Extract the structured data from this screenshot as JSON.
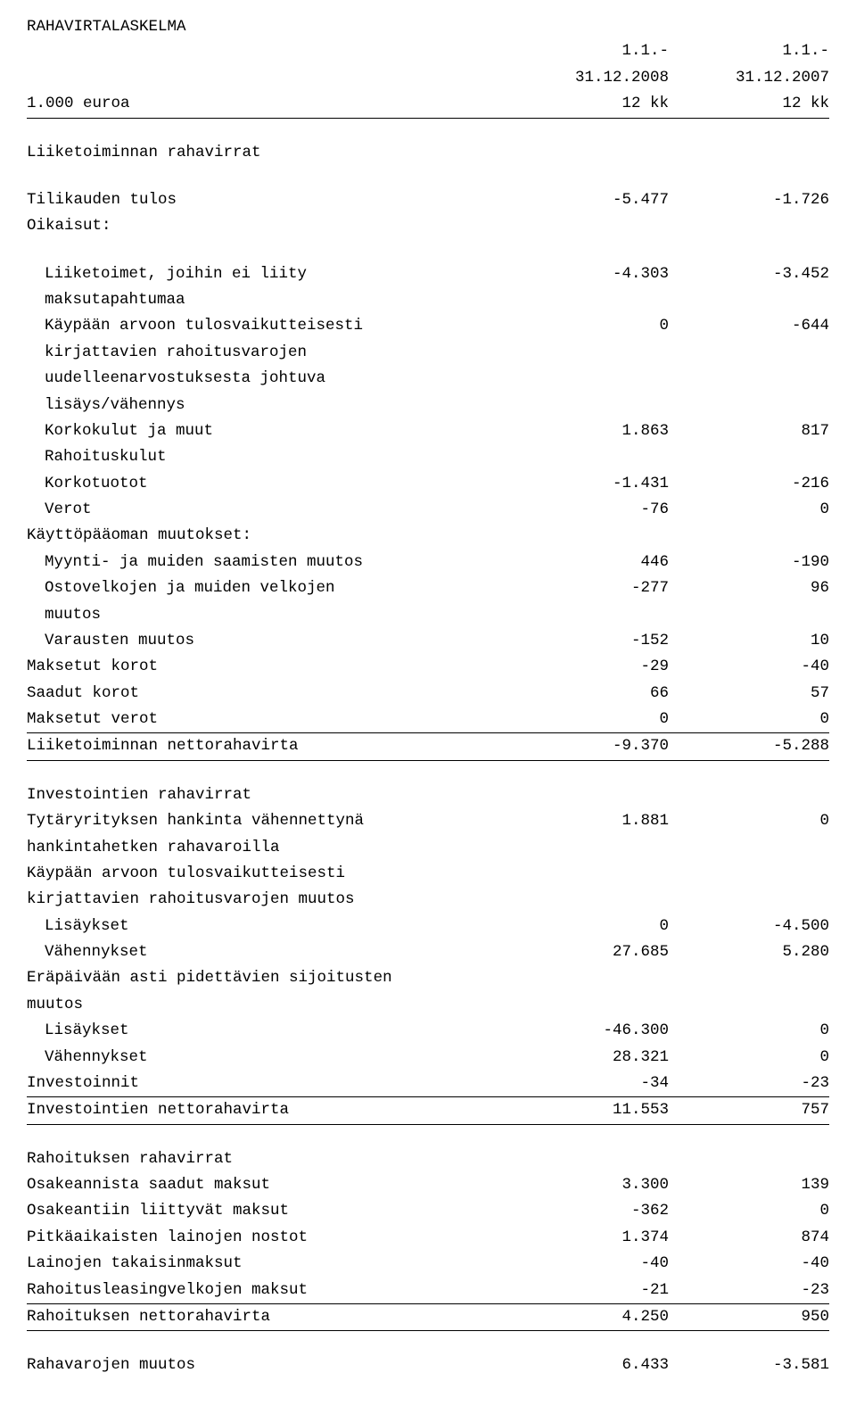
{
  "title": "RAHAVIRTALASKELMA",
  "header": {
    "unit_label": "1.000 euroa",
    "col1_line1": "1.1.-",
    "col1_line2": "31.12.2008",
    "col1_line3": "12 kk",
    "col2_line1": "1.1.-",
    "col2_line2": "31.12.2007",
    "col2_line3": "12 kk"
  },
  "sec_op": {
    "heading": "Liiketoiminnan rahavirrat",
    "tilikauden": {
      "label": "Tilikauden tulos",
      "v1": "-5.477",
      "v2": "-1.726"
    },
    "oikaisut": "Oikaisut:",
    "liiketoimet": {
      "label1": "Liiketoimet, joihin ei liity",
      "label2": "maksutapahtumaa",
      "v1": "-4.303",
      "v2": "-3.452"
    },
    "kaypaan": {
      "l1": "Käypään arvoon tulosvaikutteisesti",
      "l2": "kirjattavien rahoitusvarojen",
      "l3": "uudelleenarvostuksesta johtuva",
      "l4": "lisäys/vähennys",
      "v1": "0",
      "v2": "-644"
    },
    "korkokulut": {
      "l1": "Korkokulut ja muut",
      "l2": "Rahoituskulut",
      "v1": "1.863",
      "v2": "817"
    },
    "korkotuotot": {
      "label": "Korkotuotot",
      "v1": "-1.431",
      "v2": "-216"
    },
    "verot": {
      "label": "Verot",
      "v1": "-76",
      "v2": "0"
    },
    "kayttopaa": "Käyttöpääoman muutokset:",
    "myynti": {
      "label": "Myynti- ja muiden saamisten muutos",
      "v1": "446",
      "v2": "-190"
    },
    "ostovelat": {
      "l1": "Ostovelkojen ja muiden velkojen",
      "l2": "muutos",
      "v1": "-277",
      "v2": "96"
    },
    "varausten": {
      "label": "Varausten muutos",
      "v1": "-152",
      "v2": "10"
    },
    "maks_korot": {
      "label": "Maksetut korot",
      "v1": "-29",
      "v2": "-40"
    },
    "saadut_korot": {
      "label": "Saadut korot",
      "v1": "66",
      "v2": "57"
    },
    "maks_verot": {
      "label": "Maksetut verot",
      "v1": "0",
      "v2": "0"
    },
    "netto": {
      "label": "Liiketoiminnan nettorahavirta",
      "v1": "-9.370",
      "v2": "-5.288"
    }
  },
  "sec_inv": {
    "heading": "Investointien rahavirrat",
    "tytar": {
      "l1": "Tytäryrityksen hankinta vähennettynä",
      "l2": "hankintahetken rahavaroilla",
      "v1": "1.881",
      "v2": "0"
    },
    "kaypaan_hdr": {
      "l1": "Käypään arvoon tulosvaikutteisesti",
      "l2": "kirjattavien rahoitusvarojen muutos"
    },
    "lisaykset1": {
      "label": "Lisäykset",
      "v1": "0",
      "v2": "-4.500"
    },
    "vahennykset1": {
      "label": "Vähennykset",
      "v1": "27.685",
      "v2": "5.280"
    },
    "erapaivaan": {
      "l1": "Eräpäivään asti pidettävien sijoitusten",
      "l2": "muutos"
    },
    "lisaykset2": {
      "label": "Lisäykset",
      "v1": "-46.300",
      "v2": "0"
    },
    "vahennykset2": {
      "label": "Vähennykset",
      "v1": "28.321",
      "v2": "0"
    },
    "investoinnit": {
      "label": "Investoinnit",
      "v1": "-34",
      "v2": "-23"
    },
    "netto": {
      "label": "Investointien nettorahavirta",
      "v1": "11.553",
      "v2": "757"
    }
  },
  "sec_fin": {
    "heading": "Rahoituksen rahavirrat",
    "osakeannista": {
      "label": "Osakeannista saadut maksut",
      "v1": "3.300",
      "v2": "139"
    },
    "osakeantiin": {
      "label": "Osakeantiin liittyvät maksut",
      "v1": "-362",
      "v2": "0"
    },
    "pitkaaik": {
      "label": "Pitkäaikaisten lainojen nostot",
      "v1": "1.374",
      "v2": "874"
    },
    "lainojen": {
      "label": "Lainojen takaisinmaksut",
      "v1": "-40",
      "v2": "-40"
    },
    "leasing": {
      "label": "Rahoitusleasingvelkojen maksut",
      "v1": "-21",
      "v2": "-23"
    },
    "netto": {
      "label": "Rahoituksen nettorahavirta",
      "v1": "4.250",
      "v2": "950"
    }
  },
  "rahavarojen": {
    "label": "Rahavarojen muutos",
    "v1": "6.433",
    "v2": "-3.581"
  }
}
